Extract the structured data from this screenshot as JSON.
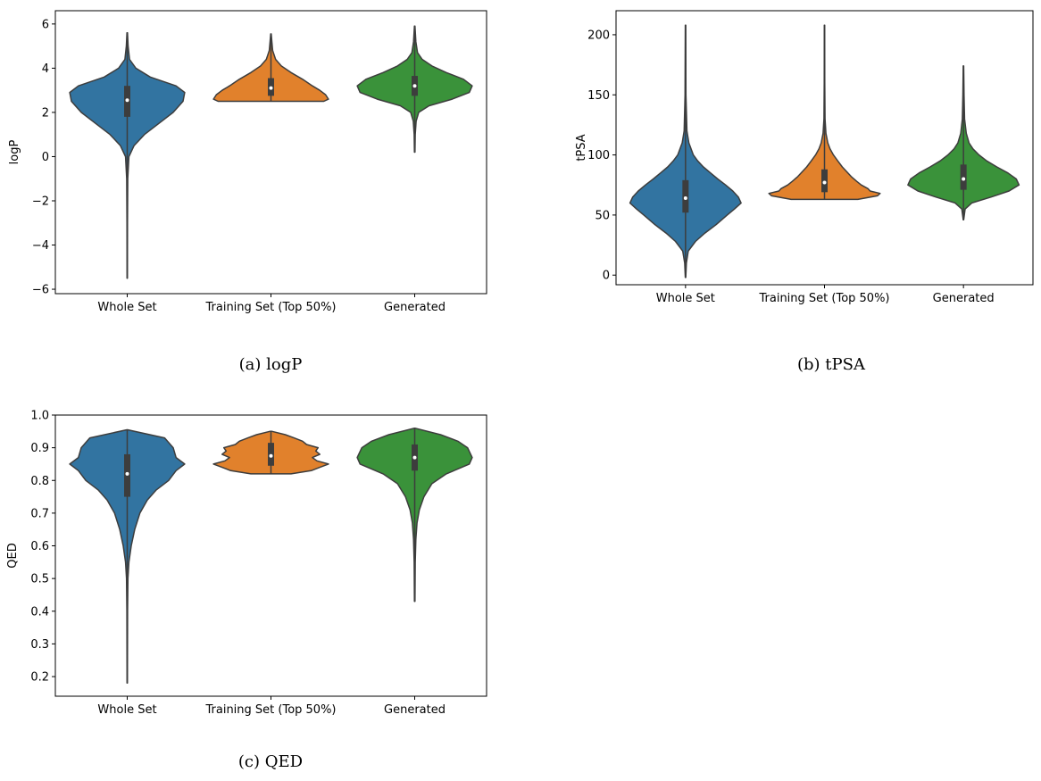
{
  "chart_data": [
    {
      "type": "violin",
      "caption": "(a) logP",
      "ylabel": "logP",
      "xlabel": "",
      "ylim": [
        -6.2,
        6.6
      ],
      "yticks": [
        -6,
        -4,
        -2,
        0,
        2,
        4,
        6
      ],
      "ytick_labels": [
        "−6",
        "−4",
        "−2",
        "0",
        "2",
        "4",
        "6"
      ],
      "categories": [
        "Whole Set",
        "Training Set (Top 50%)",
        "Generated"
      ],
      "series": [
        {
          "name": "Whole Set",
          "color": "#3274a1",
          "min": -5.5,
          "q1": 1.8,
          "median": 2.55,
          "q3": 3.2,
          "max": 5.6,
          "profile": [
            [
              -5.5,
              0.003
            ],
            [
              -3,
              0.004
            ],
            [
              -1,
              0.01
            ],
            [
              0,
              0.03
            ],
            [
              0.5,
              0.12
            ],
            [
              1,
              0.3
            ],
            [
              1.5,
              0.55
            ],
            [
              2,
              0.8
            ],
            [
              2.5,
              0.97
            ],
            [
              2.9,
              1.0
            ],
            [
              3.2,
              0.85
            ],
            [
              3.6,
              0.4
            ],
            [
              4,
              0.15
            ],
            [
              4.4,
              0.04
            ],
            [
              5,
              0.015
            ],
            [
              5.6,
              0.005
            ]
          ]
        },
        {
          "name": "Training Set (Top 50%)",
          "color": "#e1812c",
          "min": 2.5,
          "q1": 2.75,
          "median": 3.1,
          "q3": 3.55,
          "max": 5.55,
          "profile": [
            [
              2.5,
              0.92
            ],
            [
              2.6,
              1.0
            ],
            [
              2.8,
              0.95
            ],
            [
              3.0,
              0.85
            ],
            [
              3.2,
              0.72
            ],
            [
              3.5,
              0.55
            ],
            [
              3.8,
              0.35
            ],
            [
              4.1,
              0.18
            ],
            [
              4.4,
              0.08
            ],
            [
              4.8,
              0.03
            ],
            [
              5.2,
              0.015
            ],
            [
              5.55,
              0.005
            ]
          ]
        },
        {
          "name": "Generated",
          "color": "#3a923a",
          "min": 0.2,
          "q1": 2.75,
          "median": 3.2,
          "q3": 3.65,
          "max": 5.9,
          "profile": [
            [
              0.2,
              0.005
            ],
            [
              1.0,
              0.01
            ],
            [
              1.6,
              0.025
            ],
            [
              2.0,
              0.07
            ],
            [
              2.3,
              0.25
            ],
            [
              2.6,
              0.65
            ],
            [
              2.9,
              0.95
            ],
            [
              3.2,
              1.0
            ],
            [
              3.5,
              0.85
            ],
            [
              3.8,
              0.55
            ],
            [
              4.1,
              0.3
            ],
            [
              4.4,
              0.13
            ],
            [
              4.7,
              0.05
            ],
            [
              5.2,
              0.02
            ],
            [
              5.9,
              0.005
            ]
          ]
        }
      ]
    },
    {
      "type": "violin",
      "caption": "(b) tPSA",
      "ylabel": "tPSA",
      "xlabel": "",
      "ylim": [
        -8,
        220
      ],
      "yticks": [
        0,
        50,
        100,
        150,
        200
      ],
      "ytick_labels": [
        "0",
        "50",
        "100",
        "150",
        "200"
      ],
      "categories": [
        "Whole Set",
        "Training Set (Top 50%)",
        "Generated"
      ],
      "series": [
        {
          "name": "Whole Set",
          "color": "#3274a1",
          "min": -2,
          "q1": 52,
          "median": 64,
          "q3": 79,
          "max": 208,
          "profile": [
            [
              -2,
              0.004
            ],
            [
              10,
              0.015
            ],
            [
              20,
              0.05
            ],
            [
              28,
              0.18
            ],
            [
              35,
              0.35
            ],
            [
              42,
              0.55
            ],
            [
              50,
              0.75
            ],
            [
              55,
              0.88
            ],
            [
              60,
              1.0
            ],
            [
              65,
              0.95
            ],
            [
              70,
              0.85
            ],
            [
              75,
              0.72
            ],
            [
              80,
              0.58
            ],
            [
              85,
              0.45
            ],
            [
              90,
              0.32
            ],
            [
              95,
              0.22
            ],
            [
              100,
              0.14
            ],
            [
              110,
              0.06
            ],
            [
              120,
              0.025
            ],
            [
              150,
              0.008
            ],
            [
              208,
              0.004
            ]
          ]
        },
        {
          "name": "Training Set (Top 50%)",
          "color": "#e1812c",
          "min": 63,
          "q1": 69,
          "median": 77,
          "q3": 88,
          "max": 208,
          "profile": [
            [
              63,
              0.6
            ],
            [
              66,
              0.95
            ],
            [
              68,
              1.0
            ],
            [
              70,
              0.82
            ],
            [
              72,
              0.78
            ],
            [
              75,
              0.66
            ],
            [
              78,
              0.58
            ],
            [
              82,
              0.48
            ],
            [
              86,
              0.4
            ],
            [
              90,
              0.32
            ],
            [
              95,
              0.24
            ],
            [
              100,
              0.16
            ],
            [
              105,
              0.1
            ],
            [
              110,
              0.06
            ],
            [
              118,
              0.025
            ],
            [
              130,
              0.01
            ],
            [
              160,
              0.005
            ],
            [
              208,
              0.003
            ]
          ]
        },
        {
          "name": "Generated",
          "color": "#3a923a",
          "min": 46,
          "q1": 71,
          "median": 80,
          "q3": 92,
          "max": 174,
          "profile": [
            [
              46,
              0.004
            ],
            [
              55,
              0.03
            ],
            [
              60,
              0.15
            ],
            [
              65,
              0.5
            ],
            [
              70,
              0.82
            ],
            [
              75,
              1.0
            ],
            [
              80,
              0.95
            ],
            [
              85,
              0.8
            ],
            [
              90,
              0.6
            ],
            [
              95,
              0.42
            ],
            [
              100,
              0.28
            ],
            [
              105,
              0.17
            ],
            [
              110,
              0.1
            ],
            [
              118,
              0.05
            ],
            [
              130,
              0.02
            ],
            [
              150,
              0.01
            ],
            [
              174,
              0.004
            ]
          ]
        }
      ]
    },
    {
      "type": "violin",
      "caption": "(c) QED",
      "ylabel": "QED",
      "xlabel": "",
      "ylim": [
        0.14,
        1.0
      ],
      "yticks": [
        0.2,
        0.3,
        0.4,
        0.5,
        0.6,
        0.7,
        0.8,
        0.9,
        1.0
      ],
      "ytick_labels": [
        "0.2",
        "0.3",
        "0.4",
        "0.5",
        "0.6",
        "0.7",
        "0.8",
        "0.9",
        "1.0"
      ],
      "categories": [
        "Whole Set",
        "Training Set (Top 50%)",
        "Generated"
      ],
      "series": [
        {
          "name": "Whole Set",
          "color": "#3274a1",
          "min": 0.18,
          "q1": 0.75,
          "median": 0.82,
          "q3": 0.88,
          "max": 0.955,
          "profile": [
            [
              0.18,
              0.003
            ],
            [
              0.4,
              0.006
            ],
            [
              0.5,
              0.012
            ],
            [
              0.55,
              0.03
            ],
            [
              0.6,
              0.07
            ],
            [
              0.65,
              0.13
            ],
            [
              0.7,
              0.22
            ],
            [
              0.74,
              0.35
            ],
            [
              0.77,
              0.5
            ],
            [
              0.8,
              0.72
            ],
            [
              0.83,
              0.85
            ],
            [
              0.85,
              1.0
            ],
            [
              0.87,
              0.85
            ],
            [
              0.9,
              0.8
            ],
            [
              0.93,
              0.65
            ],
            [
              0.955,
              0.005
            ]
          ]
        },
        {
          "name": "Training Set (Top 50%)",
          "color": "#e1812c",
          "min": 0.82,
          "q1": 0.845,
          "median": 0.875,
          "q3": 0.915,
          "max": 0.95,
          "profile": [
            [
              0.82,
              0.35
            ],
            [
              0.83,
              0.7
            ],
            [
              0.84,
              0.85
            ],
            [
              0.85,
              1.0
            ],
            [
              0.86,
              0.8
            ],
            [
              0.87,
              0.72
            ],
            [
              0.88,
              0.85
            ],
            [
              0.89,
              0.78
            ],
            [
              0.9,
              0.82
            ],
            [
              0.91,
              0.62
            ],
            [
              0.92,
              0.55
            ],
            [
              0.93,
              0.4
            ],
            [
              0.94,
              0.25
            ],
            [
              0.95,
              0.02
            ]
          ]
        },
        {
          "name": "Generated",
          "color": "#3a923a",
          "min": 0.43,
          "q1": 0.83,
          "median": 0.87,
          "q3": 0.91,
          "max": 0.96,
          "profile": [
            [
              0.43,
              0.004
            ],
            [
              0.55,
              0.01
            ],
            [
              0.62,
              0.02
            ],
            [
              0.67,
              0.04
            ],
            [
              0.71,
              0.08
            ],
            [
              0.75,
              0.16
            ],
            [
              0.79,
              0.3
            ],
            [
              0.82,
              0.55
            ],
            [
              0.85,
              0.95
            ],
            [
              0.87,
              1.0
            ],
            [
              0.9,
              0.92
            ],
            [
              0.92,
              0.75
            ],
            [
              0.94,
              0.45
            ],
            [
              0.96,
              0.005
            ]
          ]
        }
      ]
    }
  ]
}
